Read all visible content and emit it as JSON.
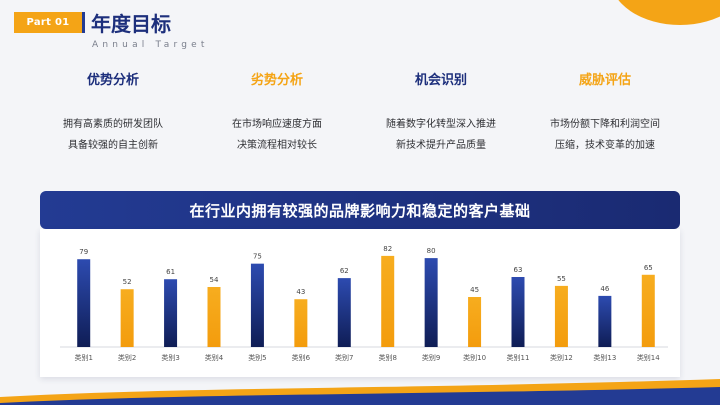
{
  "header": {
    "part_label": "Part 01",
    "title": "年度目标",
    "subtitle": "Annual Target"
  },
  "columns": [
    {
      "title": "优势分析",
      "color": "blue",
      "desc": "拥有高素质的研发团队\n具备较强的自主创新"
    },
    {
      "title": "劣势分析",
      "color": "orange",
      "desc": "在市场响应速度方面\n决策流程相对较长"
    },
    {
      "title": "机会识别",
      "color": "blue",
      "desc": "随着数字化转型深入推进\n新技术提升产品质量"
    },
    {
      "title": "威胁评估",
      "color": "orange",
      "desc": "市场份额下降和利润空间\n压缩，技术变革的加速"
    }
  ],
  "banner": {
    "text": "在行业内拥有较强的品牌影响力和稳定的客户基础"
  },
  "colors": {
    "navy": "#233b93",
    "orange": "#f4a416"
  },
  "chart_data": {
    "type": "bar",
    "categories": [
      "类别1",
      "类别2",
      "类别3",
      "类别4",
      "类别5",
      "类别6",
      "类别7",
      "类别8",
      "类别9",
      "类别10",
      "类别11",
      "类别12",
      "类别13",
      "类别14"
    ],
    "values": [
      79,
      52,
      61,
      54,
      75,
      43,
      62,
      82,
      80,
      45,
      63,
      55,
      46,
      65
    ],
    "bar_colors": [
      "#233b93",
      "#f4a416",
      "#233b93",
      "#f4a416",
      "#233b93",
      "#f4a416",
      "#233b93",
      "#f4a416",
      "#233b93",
      "#f4a416",
      "#233b93",
      "#f4a416",
      "#233b93",
      "#f4a416"
    ],
    "data_labels": true,
    "ylim": [
      0,
      90
    ],
    "grid": false
  }
}
